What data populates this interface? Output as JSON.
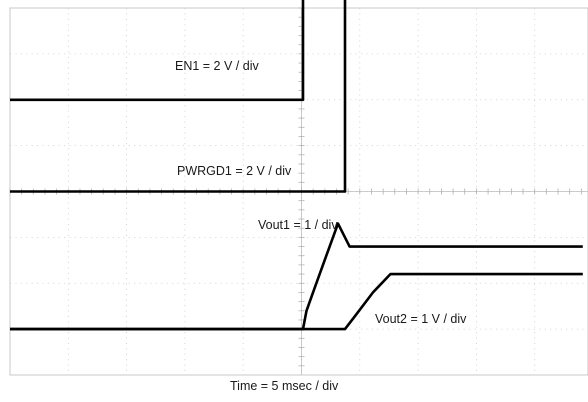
{
  "chart_data": {
    "type": "line",
    "title": "",
    "xlabel": "Time = 5 msec / div",
    "ylabel": "",
    "x_unit": "ms",
    "x_per_div_ms": 5,
    "x_divisions": 10,
    "y_divisions": 8,
    "trigger_time_ms": 0,
    "grid": true,
    "legend": "none",
    "series": [
      {
        "name": "EN1",
        "label": "EN1 = 2 V / div",
        "volts_per_div": 2,
        "baseline_div": 6.0,
        "x": [
          -26,
          0,
          0,
          24
        ],
        "y": [
          0,
          0,
          5,
          5
        ]
      },
      {
        "name": "PWRGD1",
        "label": "PWRGD1 = 2 V / div",
        "volts_per_div": 2,
        "baseline_div": 4.0,
        "x": [
          -26,
          3.6,
          3.6,
          24
        ],
        "y": [
          0,
          0,
          5,
          5
        ]
      },
      {
        "name": "Vout1",
        "label": "Vout1 = 1 / div",
        "volts_per_div": 1,
        "baseline_div": 1.0,
        "x": [
          -26,
          0,
          0.3,
          1.0,
          2.0,
          3.0,
          4.0,
          24
        ],
        "y": [
          0,
          0,
          0.4,
          0.9,
          1.6,
          2.3,
          1.8,
          1.8
        ]
      },
      {
        "name": "Vout2",
        "label": "Vout2 = 1 V / div",
        "volts_per_div": 1,
        "baseline_div": 1.0,
        "x": [
          -26,
          3.6,
          4.5,
          6.0,
          7.5,
          9.0,
          24
        ],
        "y": [
          0,
          0,
          0.3,
          0.8,
          1.2,
          1.2,
          1.2
        ]
      }
    ]
  }
}
